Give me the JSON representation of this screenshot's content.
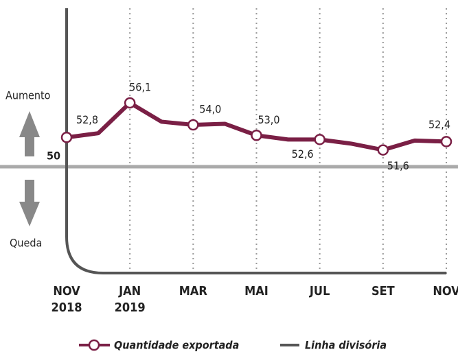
{
  "chart_data": {
    "type": "line",
    "categories": [
      "NOV\n2018",
      null,
      "JAN\n2019",
      null,
      "MAR",
      null,
      "MAI",
      null,
      "JUL",
      null,
      "SET",
      null,
      "NOV"
    ],
    "series": [
      {
        "name": "Quantidade exportada",
        "color": "#7a1f45",
        "values": [
          52.8,
          53.2,
          56.1,
          54.3,
          54.0,
          54.1,
          53.0,
          52.6,
          52.6,
          52.2,
          51.6,
          52.5,
          52.4
        ],
        "value_labels": [
          "52,8",
          null,
          "56,1",
          null,
          "54,0",
          null,
          "53,0",
          null,
          "52,6",
          null,
          "51,6",
          null,
          "52,4"
        ]
      }
    ],
    "divider": {
      "name": "Linha divisória",
      "color": "#555555"
    },
    "ylim": [
      46,
      58
    ],
    "yticks": [
      50
    ],
    "annotations": [
      "Aumento",
      "Queda"
    ]
  }
}
